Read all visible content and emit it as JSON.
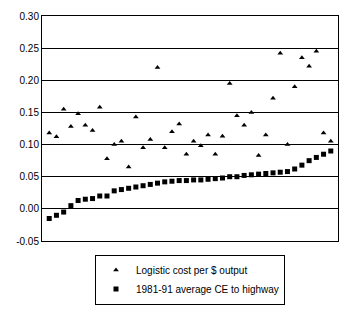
{
  "chart_data": {
    "type": "scatter",
    "x": [
      1,
      2,
      3,
      4,
      5,
      6,
      7,
      8,
      9,
      10,
      11,
      12,
      13,
      14,
      15,
      16,
      17,
      18,
      19,
      20,
      21,
      22,
      23,
      24,
      25,
      26,
      27,
      28,
      29,
      30,
      31,
      32,
      33,
      34,
      35,
      36,
      37,
      38,
      39,
      40
    ],
    "series": [
      {
        "name": "Logistic cost per $ output",
        "color": "#000000",
        "marker": "triangle-up",
        "values": [
          0.118,
          0.112,
          0.155,
          0.128,
          0.148,
          0.13,
          0.122,
          0.158,
          0.078,
          0.1,
          0.105,
          0.065,
          0.143,
          0.095,
          0.108,
          0.22,
          0.095,
          0.12,
          0.132,
          0.085,
          0.105,
          0.098,
          0.115,
          0.085,
          0.113,
          0.195,
          0.145,
          0.13,
          0.15,
          0.083,
          0.115,
          0.172,
          0.242,
          0.1,
          0.19,
          0.235,
          0.222,
          0.245,
          0.118,
          0.105
        ]
      },
      {
        "name": "1981-91 average CE to highway",
        "color": "#000000",
        "marker": "square",
        "values": [
          -0.015,
          -0.01,
          -0.005,
          0.005,
          0.013,
          0.015,
          0.016,
          0.02,
          0.02,
          0.028,
          0.03,
          0.032,
          0.034,
          0.036,
          0.038,
          0.04,
          0.042,
          0.043,
          0.044,
          0.044,
          0.045,
          0.045,
          0.046,
          0.047,
          0.048,
          0.05,
          0.05,
          0.052,
          0.053,
          0.054,
          0.055,
          0.056,
          0.057,
          0.058,
          0.062,
          0.068,
          0.075,
          0.08,
          0.085,
          0.09
        ]
      }
    ],
    "xlim": [
      0,
      41
    ],
    "ylim": [
      -0.05,
      0.3
    ],
    "yticks": [
      -0.05,
      {
        "value": 0,
        "label": "0.00"
      },
      0.05,
      {
        "value": 0.1,
        "label": "0.10"
      },
      0.15,
      {
        "value": 0.2,
        "label": "0.20"
      },
      0.25,
      {
        "value": 0.3,
        "label": "0.30"
      }
    ],
    "grid": true,
    "legend": "bottom",
    "tick_labels": "y"
  }
}
